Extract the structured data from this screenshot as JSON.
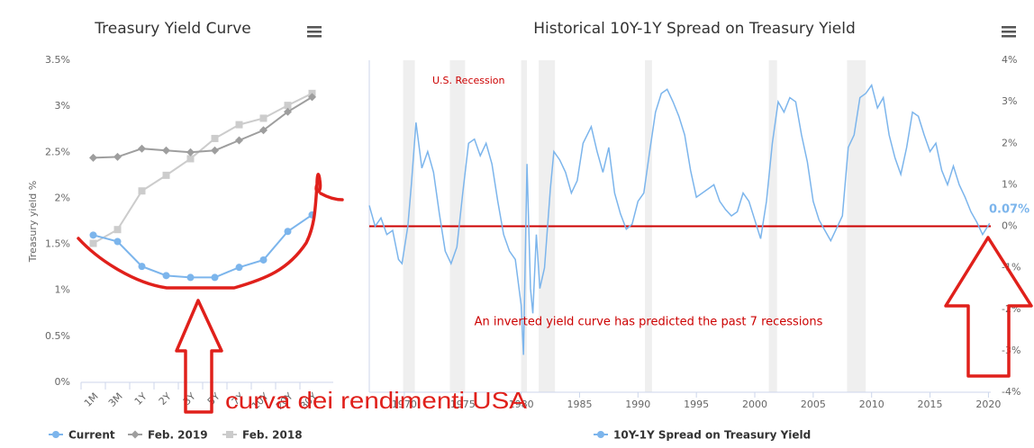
{
  "chart_data": [
    {
      "type": "line",
      "title": "Treasury Yield Curve",
      "y_label": "Treasury yield %",
      "categories": [
        "1M",
        "3M",
        "1Y",
        "2Y",
        "3Y",
        "5Y",
        "7Y",
        "10Y",
        "20Y",
        "30Y"
      ],
      "series": [
        {
          "name": "Current",
          "color": "#7cb5ec",
          "marker": "circle",
          "values": [
            1.6,
            1.53,
            1.26,
            1.16,
            1.14,
            1.14,
            1.25,
            1.33,
            1.64,
            1.82
          ]
        },
        {
          "name": "Feb. 2019",
          "color": "#9e9e9e",
          "marker": "diamond",
          "values": [
            2.44,
            2.45,
            2.54,
            2.52,
            2.5,
            2.52,
            2.63,
            2.74,
            2.94,
            3.1
          ]
        },
        {
          "name": "Feb. 2018",
          "color": "#cccccc",
          "marker": "square",
          "values": [
            1.51,
            1.66,
            2.08,
            2.25,
            2.43,
            2.65,
            2.8,
            2.87,
            3.01,
            3.14
          ]
        }
      ],
      "ylim": [
        0,
        3.5
      ],
      "yticks": [
        {
          "value": 0,
          "label": "0%"
        },
        {
          "value": 0.5,
          "label": "0.5%"
        },
        {
          "value": 1,
          "label": "1%"
        },
        {
          "value": 1.5,
          "label": "1.5%"
        },
        {
          "value": 2,
          "label": "2%"
        },
        {
          "value": 2.5,
          "label": "2.5%"
        },
        {
          "value": 3,
          "label": "3%"
        },
        {
          "value": 3.5,
          "label": "3.5%"
        }
      ],
      "grid": false
    },
    {
      "type": "line",
      "title": "Historical 10Y-1Y Spread on Treasury Yield",
      "x": [
        1967.0,
        1967.5,
        1968.0,
        1968.5,
        1969.0,
        1969.5,
        1969.8,
        1970.3,
        1970.6,
        1971.0,
        1971.5,
        1972.0,
        1972.5,
        1973.0,
        1973.5,
        1974.0,
        1974.5,
        1975.0,
        1975.5,
        1976.0,
        1976.5,
        1977.0,
        1977.5,
        1978.0,
        1978.5,
        1979.0,
        1979.5,
        1980.0,
        1980.2,
        1980.5,
        1980.8,
        1981.0,
        1981.3,
        1981.6,
        1982.0,
        1982.5,
        1982.8,
        1983.3,
        1983.8,
        1984.3,
        1984.8,
        1985.3,
        1986.0,
        1986.5,
        1987.0,
        1987.5,
        1988.0,
        1988.5,
        1989.0,
        1989.5,
        1990.0,
        1990.5,
        1991.0,
        1991.5,
        1992.0,
        1992.5,
        1993.0,
        1993.5,
        1994.0,
        1994.5,
        1995.0,
        1995.5,
        1996.0,
        1996.5,
        1997.0,
        1997.5,
        1998.0,
        1998.5,
        1999.0,
        1999.5,
        2000.0,
        2000.5,
        2001.0,
        2001.5,
        2002.0,
        2002.5,
        2003.0,
        2003.5,
        2004.0,
        2004.5,
        2005.0,
        2005.5,
        2006.0,
        2006.5,
        2007.0,
        2007.5,
        2008.0,
        2008.5,
        2009.0,
        2009.5,
        2010.0,
        2010.5,
        2011.0,
        2011.5,
        2012.0,
        2012.5,
        2013.0,
        2013.5,
        2014.0,
        2014.5,
        2015.0,
        2015.5,
        2016.0,
        2016.5,
        2017.0,
        2017.5,
        2018.0,
        2018.5,
        2019.0,
        2019.5,
        2020.1
      ],
      "series": [
        {
          "name": "10Y-1Y Spread on Treasury Yield",
          "color": "#7cb5ec",
          "values": [
            0.5,
            0.0,
            0.2,
            -0.2,
            -0.1,
            -0.8,
            -0.9,
            0.0,
            1.0,
            2.5,
            1.4,
            1.8,
            1.3,
            0.3,
            -0.6,
            -0.9,
            -0.5,
            0.8,
            2.0,
            2.1,
            1.7,
            2.0,
            1.5,
            0.6,
            -0.2,
            -0.6,
            -0.8,
            -1.9,
            -3.1,
            1.5,
            -1.5,
            -2.1,
            -0.2,
            -1.5,
            -1.0,
            0.9,
            1.8,
            1.6,
            1.3,
            0.8,
            1.1,
            2.0,
            2.4,
            1.8,
            1.3,
            1.9,
            0.8,
            0.3,
            -0.07,
            0.05,
            0.6,
            0.8,
            1.8,
            2.75,
            3.2,
            3.3,
            3.0,
            2.65,
            2.2,
            1.35,
            0.7,
            0.8,
            0.9,
            1.0,
            0.6,
            0.4,
            0.25,
            0.35,
            0.8,
            0.6,
            0.15,
            -0.3,
            0.6,
            2.0,
            3.0,
            2.75,
            3.1,
            3.0,
            2.2,
            1.55,
            0.6,
            0.15,
            -0.1,
            -0.35,
            -0.05,
            0.25,
            1.9,
            2.2,
            3.1,
            3.2,
            3.4,
            2.85,
            3.1,
            2.2,
            1.65,
            1.25,
            1.9,
            2.75,
            2.65,
            2.2,
            1.8,
            2.0,
            1.35,
            1.0,
            1.45,
            1.0,
            0.7,
            0.35,
            0.1,
            -0.2,
            0.07
          ]
        }
      ],
      "xlim": [
        1967,
        2020.2
      ],
      "xticks": [
        1970,
        1975,
        1980,
        1985,
        1990,
        1995,
        2000,
        2005,
        2010,
        2015,
        2020
      ],
      "ylim": [
        -4,
        4
      ],
      "yticks": [
        {
          "value": -4,
          "label": "-4%"
        },
        {
          "value": -3,
          "label": "-3%"
        },
        {
          "value": -2,
          "label": "-2%"
        },
        {
          "value": -1,
          "label": "-1%"
        },
        {
          "value": 0,
          "label": "0%"
        },
        {
          "value": 1,
          "label": "1%"
        },
        {
          "value": 2,
          "label": "2%"
        },
        {
          "value": 3,
          "label": "3%"
        },
        {
          "value": 4,
          "label": "4%"
        }
      ],
      "recessions": [
        [
          1969.9,
          1970.9
        ],
        [
          1973.9,
          1975.2
        ],
        [
          1980.0,
          1980.5
        ],
        [
          1981.5,
          1982.9
        ],
        [
          1990.6,
          1991.2
        ],
        [
          2001.2,
          2001.9
        ],
        [
          2007.9,
          2009.5
        ]
      ],
      "recession_label": "U.S. Recession",
      "note": "An inverted yield curve has predicted the past 7 recessions",
      "reference_line": {
        "value": 0,
        "color": "#cc0000"
      },
      "end_label": {
        "x": 2020.1,
        "value": 0.07,
        "label": "0.07%"
      },
      "grid": false
    }
  ],
  "overlay": {
    "text": "curva dei rendimenti USA",
    "color": "#e0201b"
  }
}
